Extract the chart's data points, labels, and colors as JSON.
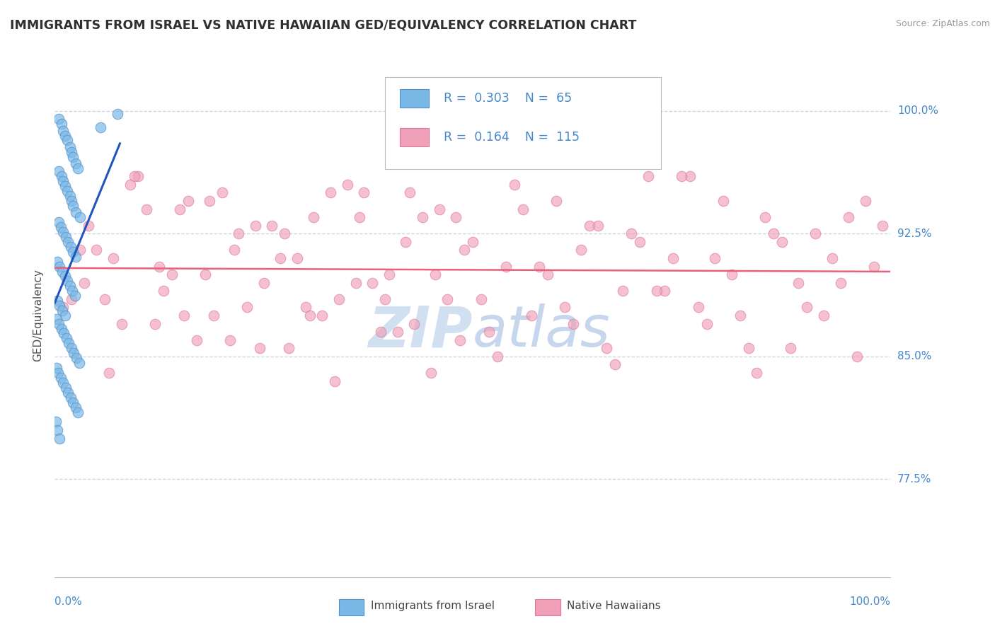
{
  "title": "IMMIGRANTS FROM ISRAEL VS NATIVE HAWAIIAN GED/EQUIVALENCY CORRELATION CHART",
  "source": "Source: ZipAtlas.com",
  "ylabel": "GED/Equivalency",
  "y_tick_labels": [
    "77.5%",
    "85.0%",
    "92.5%",
    "100.0%"
  ],
  "y_tick_values": [
    0.775,
    0.85,
    0.925,
    1.0
  ],
  "x_range": [
    0.0,
    1.0
  ],
  "y_range": [
    0.715,
    1.035
  ],
  "israel_color": "#7ab8e8",
  "israel_edge_color": "#5590c8",
  "hawaii_color": "#f0a0b8",
  "hawaii_edge_color": "#e07898",
  "israel_line_color": "#2255bb",
  "hawaii_line_color": "#e8607a",
  "background_color": "#ffffff",
  "grid_color": "#c8d4e8",
  "title_color": "#303030",
  "source_color": "#999999",
  "tick_label_color": "#4488cc",
  "watermark_color": "#ccddf0",
  "legend_R1": "0.303",
  "legend_N1": "65",
  "legend_R2": "0.164",
  "legend_N2": "115",
  "israel_points_x": [
    0.005,
    0.008,
    0.01,
    0.012,
    0.015,
    0.018,
    0.02,
    0.022,
    0.025,
    0.028,
    0.005,
    0.008,
    0.01,
    0.012,
    0.015,
    0.018,
    0.02,
    0.022,
    0.025,
    0.03,
    0.005,
    0.007,
    0.01,
    0.013,
    0.016,
    0.019,
    0.022,
    0.025,
    0.003,
    0.006,
    0.009,
    0.012,
    0.015,
    0.018,
    0.021,
    0.024,
    0.003,
    0.006,
    0.009,
    0.012,
    0.002,
    0.005,
    0.008,
    0.011,
    0.014,
    0.017,
    0.02,
    0.023,
    0.026,
    0.029,
    0.002,
    0.004,
    0.007,
    0.01,
    0.013,
    0.016,
    0.019,
    0.022,
    0.025,
    0.028,
    0.001,
    0.003,
    0.006,
    0.055,
    0.075
  ],
  "israel_points_y": [
    0.995,
    0.992,
    0.988,
    0.985,
    0.982,
    0.978,
    0.975,
    0.972,
    0.968,
    0.965,
    0.963,
    0.96,
    0.957,
    0.954,
    0.951,
    0.948,
    0.945,
    0.942,
    0.938,
    0.935,
    0.932,
    0.929,
    0.926,
    0.923,
    0.92,
    0.917,
    0.914,
    0.911,
    0.908,
    0.905,
    0.902,
    0.899,
    0.896,
    0.893,
    0.89,
    0.887,
    0.884,
    0.881,
    0.878,
    0.875,
    0.873,
    0.87,
    0.867,
    0.864,
    0.861,
    0.858,
    0.855,
    0.852,
    0.849,
    0.846,
    0.843,
    0.84,
    0.837,
    0.834,
    0.831,
    0.828,
    0.825,
    0.822,
    0.819,
    0.816,
    0.81,
    0.805,
    0.8,
    0.99,
    0.998
  ],
  "hawaii_points_x": [
    0.01,
    0.04,
    0.07,
    0.1,
    0.13,
    0.16,
    0.19,
    0.22,
    0.25,
    0.28,
    0.31,
    0.34,
    0.37,
    0.4,
    0.43,
    0.46,
    0.49,
    0.52,
    0.55,
    0.58,
    0.61,
    0.64,
    0.67,
    0.7,
    0.73,
    0.76,
    0.79,
    0.82,
    0.85,
    0.88,
    0.91,
    0.94,
    0.97,
    0.02,
    0.05,
    0.08,
    0.11,
    0.14,
    0.17,
    0.2,
    0.23,
    0.26,
    0.29,
    0.32,
    0.35,
    0.38,
    0.41,
    0.44,
    0.47,
    0.5,
    0.53,
    0.56,
    0.59,
    0.62,
    0.65,
    0.68,
    0.71,
    0.74,
    0.77,
    0.8,
    0.83,
    0.86,
    0.89,
    0.92,
    0.95,
    0.98,
    0.03,
    0.06,
    0.09,
    0.12,
    0.15,
    0.18,
    0.21,
    0.24,
    0.27,
    0.3,
    0.33,
    0.36,
    0.39,
    0.42,
    0.45,
    0.48,
    0.51,
    0.54,
    0.57,
    0.6,
    0.63,
    0.66,
    0.69,
    0.72,
    0.75,
    0.78,
    0.81,
    0.84,
    0.87,
    0.9,
    0.93,
    0.96,
    0.99,
    0.035,
    0.065,
    0.095,
    0.125,
    0.155,
    0.185,
    0.215,
    0.245,
    0.275,
    0.305,
    0.335,
    0.365,
    0.395,
    0.425,
    0.455,
    0.485
  ],
  "hawaii_points_y": [
    0.88,
    0.93,
    0.91,
    0.96,
    0.89,
    0.945,
    0.875,
    0.925,
    0.895,
    0.855,
    0.935,
    0.885,
    0.95,
    0.9,
    0.87,
    0.94,
    0.915,
    0.865,
    0.955,
    0.905,
    0.88,
    0.93,
    0.845,
    0.92,
    0.89,
    0.96,
    0.91,
    0.875,
    0.935,
    0.855,
    0.925,
    0.895,
    0.945,
    0.885,
    0.915,
    0.87,
    0.94,
    0.9,
    0.86,
    0.95,
    0.88,
    0.93,
    0.91,
    0.875,
    0.955,
    0.895,
    0.865,
    0.935,
    0.885,
    0.92,
    0.85,
    0.94,
    0.9,
    0.87,
    0.93,
    0.89,
    0.96,
    0.91,
    0.88,
    0.945,
    0.855,
    0.925,
    0.895,
    0.875,
    0.935,
    0.905,
    0.915,
    0.885,
    0.955,
    0.87,
    0.94,
    0.9,
    0.86,
    0.93,
    0.91,
    0.88,
    0.95,
    0.895,
    0.865,
    0.92,
    0.84,
    0.935,
    0.885,
    0.905,
    0.875,
    0.945,
    0.915,
    0.855,
    0.925,
    0.89,
    0.96,
    0.87,
    0.9,
    0.84,
    0.92,
    0.88,
    0.91,
    0.85,
    0.93,
    0.895,
    0.84,
    0.96,
    0.905,
    0.875,
    0.945,
    0.915,
    0.855,
    0.925,
    0.875,
    0.835,
    0.935,
    0.885,
    0.95,
    0.9,
    0.86
  ]
}
